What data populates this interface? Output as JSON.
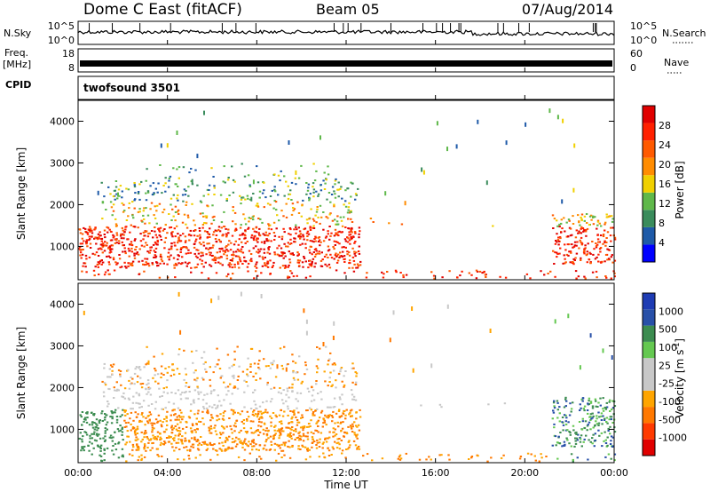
{
  "header": {
    "station": "Dome C East (fitACF)",
    "beam": "Beam 05",
    "date": "07/Aug/2014"
  },
  "side_labels": {
    "nsky": "N.Sky",
    "freq_top": "Freq.",
    "freq_unit": "[MHz]",
    "cpid": "CPID",
    "nsearch": "N.Search",
    "nave": "Nave",
    "cpid_value": "twofsound 3501"
  },
  "colors": {
    "power_scale": [
      "#0000ff",
      "#1e5aa8",
      "#3a8c5c",
      "#5fb84a",
      "#f0d000",
      "#ff8c00",
      "#ff5a00",
      "#ff2000",
      "#e00000"
    ],
    "velocity_scale": [
      "#e00000",
      "#ff3a00",
      "#ff7800",
      "#ffa500",
      "#c8c8c8",
      "#c8c8c8",
      "#64c850",
      "#3c8c50",
      "#2850a8",
      "#1e3cb4"
    ]
  },
  "chart_data": [
    {
      "type": "line",
      "name": "noise",
      "series": [
        {
          "name": "N.Sky"
        },
        {
          "name": "N.Search"
        }
      ],
      "left_ticks": [
        "10^5",
        "10^0"
      ],
      "right_ticks": [
        "10^5",
        "10^0"
      ]
    },
    {
      "type": "line",
      "name": "frequency",
      "left_ticks": [
        "18",
        "8"
      ],
      "right_ticks": [
        "60",
        "0"
      ],
      "series": [
        {
          "name": "Freq.",
          "unit": "MHz"
        },
        {
          "name": "Nave"
        }
      ]
    },
    {
      "type": "heatmap",
      "name": "power",
      "ylabel": "Slant Range [km]",
      "yticks": [
        1000,
        2000,
        3000,
        4000
      ],
      "ylim": [
        200,
        4500
      ],
      "xlim": [
        0,
        24
      ],
      "colorbar_label": "Power [dB]",
      "colorbar_ticks": [
        "4",
        "8",
        "12",
        "16",
        "20",
        "24",
        "28"
      ]
    },
    {
      "type": "heatmap",
      "name": "velocity",
      "ylabel": "Slant Range [km]",
      "yticks": [
        1000,
        2000,
        3000,
        4000
      ],
      "ylim": [
        200,
        4500
      ],
      "xlim": [
        0,
        24
      ],
      "colorbar_label": "Velocity [m s",
      "colorbar_label_sup": "-1",
      "colorbar_label_end": "]",
      "colorbar_ticks": [
        "-1000",
        "-500",
        "-100",
        "-25",
        "25",
        "100",
        "500",
        "1000"
      ]
    }
  ],
  "xaxis": {
    "label": "Time UT",
    "ticks": [
      "00:00",
      "04:00",
      "08:00",
      "12:00",
      "16:00",
      "20:00",
      "00:00"
    ]
  }
}
